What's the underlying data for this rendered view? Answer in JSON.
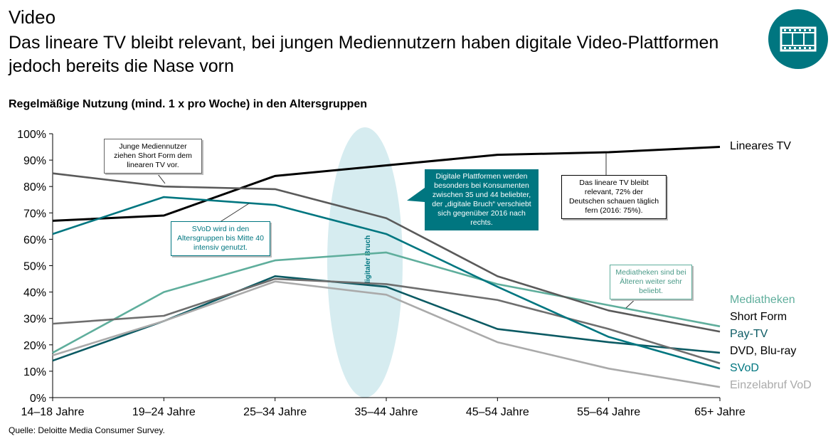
{
  "header": {
    "title": "Video",
    "subtitle": "Das lineare TV bleibt relevant, bei jungen Mediennutzern haben digitale Video-Plattformen jedoch bereits die Nase vorn",
    "badge_icon": "film-strip-icon"
  },
  "chart_heading": "Regelmäßige Nutzung (mind. 1 x pro Woche) in den Altersgruppen",
  "source": "Quelle: Deloitte Media Consumer Survey.",
  "annotations": {
    "short_form": "Junge Mediennutzer ziehen Short Form dem linearen TV vor.",
    "svod": "SVoD wird in den Altersgruppen bis Mitte 40 intensiv genutzt.",
    "digital": "Digitale Plattformen werden besonders bei Konsumenten zwischen 35 und 44 beliebter, der „digitale Bruch“ verschiebt sich gegenüber 2016 nach rechts.",
    "linear": "Das lineare TV bleibt relevant, 72% der Deutschen schauen täglich fern (2016: 75%).",
    "mediatheken": "Mediatheken sind bei Älteren weiter sehr beliebt.",
    "bruch_label": "digitaler Bruch"
  },
  "chart_data": {
    "type": "line",
    "categories": [
      "14–18 Jahre",
      "19–24 Jahre",
      "25–34 Jahre",
      "35–44 Jahre",
      "45–54 Jahre",
      "55–64 Jahre",
      "65+ Jahre"
    ],
    "ylim": [
      0,
      100
    ],
    "yticks": [
      "0%",
      "10%",
      "20%",
      "30%",
      "40%",
      "50%",
      "60%",
      "70%",
      "80%",
      "90%",
      "100%"
    ],
    "grid": false,
    "legend": "right",
    "series": [
      {
        "name": "Lineares TV",
        "color": "#000000",
        "values": [
          67,
          69,
          84,
          88,
          92,
          93,
          95
        ]
      },
      {
        "name": "Mediatheken",
        "color": "#5fae9c",
        "values": [
          17,
          40,
          52,
          55,
          43,
          35,
          27
        ]
      },
      {
        "name": "Short Form",
        "color": "#5a5a5a",
        "values": [
          85,
          80,
          79,
          68,
          46,
          33,
          25
        ]
      },
      {
        "name": "Pay-TV",
        "color": "#0b5a63",
        "values": [
          14,
          29,
          46,
          42,
          26,
          21,
          17
        ]
      },
      {
        "name": "DVD, Blu-ray",
        "color": "#6e6e6e",
        "values": [
          28,
          31,
          45,
          43,
          37,
          26,
          13
        ]
      },
      {
        "name": "SVoD",
        "color": "#007680",
        "values": [
          62,
          76,
          73,
          62,
          42,
          23,
          11
        ]
      },
      {
        "name": "Einzelabruf VoD",
        "color": "#aaaaaa",
        "values": [
          16,
          29,
          44,
          39,
          21,
          11,
          4
        ]
      }
    ]
  }
}
